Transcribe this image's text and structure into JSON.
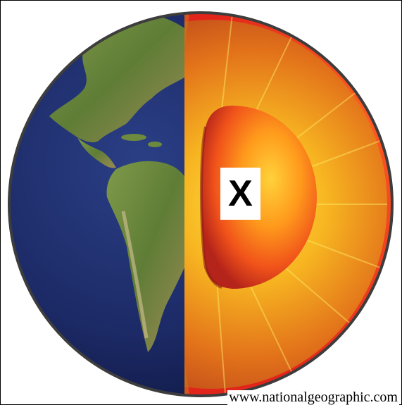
{
  "diagram": {
    "inner_core_label": "X",
    "source": "www.nationalgeographic.com"
  }
}
